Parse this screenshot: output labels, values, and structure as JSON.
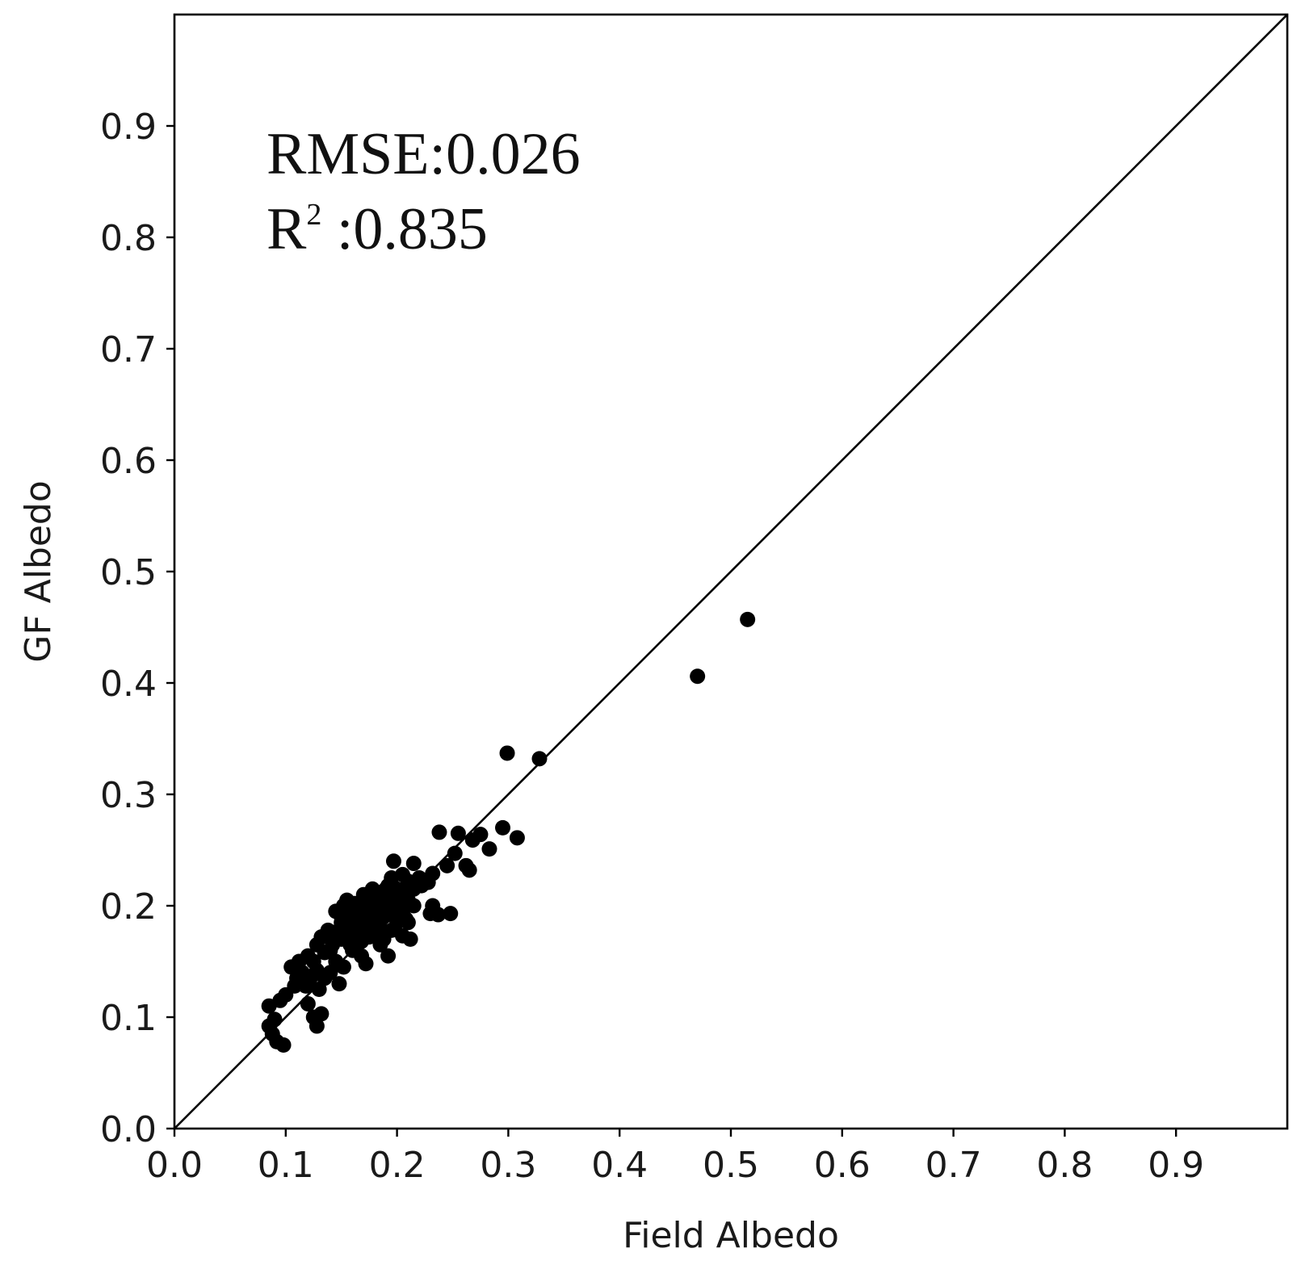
{
  "chart_data": {
    "type": "scatter",
    "title": "",
    "xlabel": "Field Albedo",
    "ylabel": "GF Albedo",
    "xlim": [
      0.0,
      1.0
    ],
    "ylim": [
      0.0,
      1.0
    ],
    "x_ticks": [
      "0.0",
      "0.1",
      "0.2",
      "0.3",
      "0.4",
      "0.5",
      "0.6",
      "0.7",
      "0.8",
      "0.9"
    ],
    "y_ticks": [
      "0.0",
      "0.1",
      "0.2",
      "0.3",
      "0.4",
      "0.5",
      "0.6",
      "0.7",
      "0.8",
      "0.9"
    ],
    "grid": false,
    "reference_line": {
      "type": "1:1",
      "from": [
        0.0,
        0.0
      ],
      "to": [
        1.0,
        1.0
      ]
    },
    "annotations": {
      "rmse": "RMSE:0.026",
      "r2_prefix": "R",
      "r2_superscript": "2",
      "r2_value": " :0.835"
    },
    "marker_color": "#000000",
    "points": [
      [
        0.515,
        0.457
      ],
      [
        0.47,
        0.406
      ],
      [
        0.299,
        0.337
      ],
      [
        0.328,
        0.332
      ],
      [
        0.295,
        0.27
      ],
      [
        0.308,
        0.261
      ],
      [
        0.238,
        0.266
      ],
      [
        0.255,
        0.265
      ],
      [
        0.275,
        0.264
      ],
      [
        0.268,
        0.259
      ],
      [
        0.283,
        0.251
      ],
      [
        0.252,
        0.247
      ],
      [
        0.262,
        0.236
      ],
      [
        0.265,
        0.232
      ],
      [
        0.245,
        0.236
      ],
      [
        0.232,
        0.229
      ],
      [
        0.228,
        0.221
      ],
      [
        0.215,
        0.238
      ],
      [
        0.197,
        0.24
      ],
      [
        0.205,
        0.228
      ],
      [
        0.21,
        0.222
      ],
      [
        0.222,
        0.218
      ],
      [
        0.2,
        0.21
      ],
      [
        0.195,
        0.205
      ],
      [
        0.19,
        0.215
      ],
      [
        0.185,
        0.2
      ],
      [
        0.178,
        0.195
      ],
      [
        0.17,
        0.205
      ],
      [
        0.165,
        0.192
      ],
      [
        0.16,
        0.2
      ],
      [
        0.155,
        0.195
      ],
      [
        0.15,
        0.185
      ],
      [
        0.148,
        0.178
      ],
      [
        0.145,
        0.17
      ],
      [
        0.158,
        0.165
      ],
      [
        0.165,
        0.175
      ],
      [
        0.175,
        0.18
      ],
      [
        0.182,
        0.185
      ],
      [
        0.188,
        0.19
      ],
      [
        0.192,
        0.195
      ],
      [
        0.198,
        0.2
      ],
      [
        0.205,
        0.195
      ],
      [
        0.21,
        0.185
      ],
      [
        0.215,
        0.2
      ],
      [
        0.232,
        0.2
      ],
      [
        0.23,
        0.193
      ],
      [
        0.237,
        0.192
      ],
      [
        0.248,
        0.193
      ],
      [
        0.212,
        0.17
      ],
      [
        0.205,
        0.173
      ],
      [
        0.192,
        0.155
      ],
      [
        0.185,
        0.165
      ],
      [
        0.172,
        0.148
      ],
      [
        0.168,
        0.155
      ],
      [
        0.16,
        0.16
      ],
      [
        0.152,
        0.145
      ],
      [
        0.148,
        0.13
      ],
      [
        0.14,
        0.14
      ],
      [
        0.135,
        0.135
      ],
      [
        0.13,
        0.125
      ],
      [
        0.128,
        0.142
      ],
      [
        0.125,
        0.15
      ],
      [
        0.12,
        0.155
      ],
      [
        0.112,
        0.15
      ],
      [
        0.105,
        0.145
      ],
      [
        0.11,
        0.135
      ],
      [
        0.118,
        0.128
      ],
      [
        0.122,
        0.135
      ],
      [
        0.128,
        0.165
      ],
      [
        0.132,
        0.172
      ],
      [
        0.138,
        0.178
      ],
      [
        0.142,
        0.165
      ],
      [
        0.135,
        0.158
      ],
      [
        0.1,
        0.12
      ],
      [
        0.095,
        0.115
      ],
      [
        0.085,
        0.11
      ],
      [
        0.09,
        0.098
      ],
      [
        0.085,
        0.092
      ],
      [
        0.088,
        0.085
      ],
      [
        0.092,
        0.078
      ],
      [
        0.098,
        0.075
      ],
      [
        0.12,
        0.112
      ],
      [
        0.125,
        0.1
      ],
      [
        0.128,
        0.092
      ],
      [
        0.132,
        0.103
      ],
      [
        0.108,
        0.128
      ],
      [
        0.115,
        0.14
      ],
      [
        0.155,
        0.205
      ],
      [
        0.162,
        0.202
      ],
      [
        0.17,
        0.21
      ],
      [
        0.178,
        0.215
      ],
      [
        0.185,
        0.212
      ],
      [
        0.192,
        0.218
      ],
      [
        0.2,
        0.215
      ],
      [
        0.205,
        0.21
      ],
      [
        0.17,
        0.188
      ],
      [
        0.175,
        0.172
      ],
      [
        0.18,
        0.178
      ],
      [
        0.188,
        0.17
      ],
      [
        0.195,
        0.178
      ],
      [
        0.2,
        0.185
      ],
      [
        0.155,
        0.175
      ],
      [
        0.16,
        0.18
      ],
      [
        0.165,
        0.185
      ],
      [
        0.15,
        0.19
      ],
      [
        0.145,
        0.195
      ],
      [
        0.14,
        0.16
      ],
      [
        0.182,
        0.205
      ],
      [
        0.188,
        0.198
      ],
      [
        0.172,
        0.198
      ],
      [
        0.168,
        0.168
      ],
      [
        0.162,
        0.17
      ],
      [
        0.215,
        0.215
      ],
      [
        0.22,
        0.225
      ],
      [
        0.195,
        0.225
      ],
      [
        0.185,
        0.18
      ],
      [
        0.178,
        0.19
      ],
      [
        0.158,
        0.188
      ],
      [
        0.152,
        0.2
      ],
      [
        0.21,
        0.205
      ],
      [
        0.198,
        0.192
      ],
      [
        0.208,
        0.188
      ],
      [
        0.15,
        0.17
      ],
      [
        0.145,
        0.15
      ],
      [
        0.175,
        0.205
      ],
      [
        0.19,
        0.205
      ]
    ]
  }
}
